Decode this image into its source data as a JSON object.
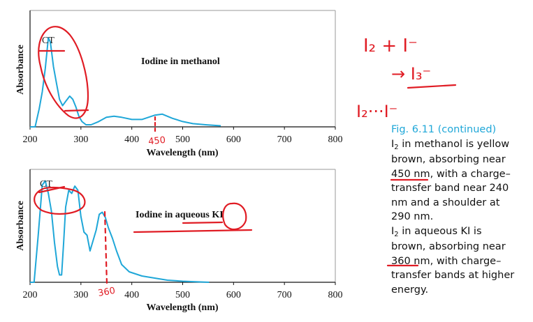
{
  "chart_data": [
    {
      "type": "line",
      "title": "Iodine in methanol",
      "annotation": "CT",
      "xlabel": "Wavelength (nm)",
      "ylabel": "Absorbance",
      "xlim": [
        200,
        800
      ],
      "ylim": [
        0,
        1
      ],
      "xticks": [
        "200",
        "300",
        "400",
        "500",
        "600",
        "700",
        "800"
      ],
      "line_color": "#1fa7d8",
      "series": [
        {
          "x": [
            200,
            210,
            218,
            224,
            230,
            236,
            240,
            246,
            252,
            258,
            264,
            270,
            278,
            284,
            290,
            296,
            302,
            310,
            320,
            335,
            350,
            365,
            380,
            400,
            420,
            445,
            460,
            480,
            500,
            520,
            545,
            575
          ],
          "y": [
            0.0,
            0.0,
            0.17,
            0.33,
            0.55,
            0.84,
            0.8,
            0.57,
            0.41,
            0.26,
            0.2,
            0.24,
            0.29,
            0.26,
            0.19,
            0.1,
            0.05,
            0.02,
            0.02,
            0.05,
            0.09,
            0.1,
            0.09,
            0.07,
            0.07,
            0.11,
            0.12,
            0.08,
            0.05,
            0.03,
            0.02,
            0.01
          ]
        }
      ]
    },
    {
      "type": "line",
      "title": "Iodine in aqueous KI",
      "annotation": "CT",
      "xlabel": "Wavelength (nm)",
      "ylabel": "Absorbance",
      "xlim": [
        200,
        800
      ],
      "ylim": [
        0,
        1
      ],
      "xticks": [
        "200",
        "300",
        "400",
        "500",
        "600",
        "700",
        "800"
      ],
      "line_color": "#1fa7d8",
      "series": [
        {
          "x": [
            200,
            208,
            216,
            224,
            230,
            236,
            242,
            248,
            254,
            258,
            262,
            266,
            270,
            276,
            282,
            288,
            294,
            300,
            306,
            312,
            318,
            324,
            330,
            336,
            342,
            348,
            354,
            362,
            370,
            380,
            395,
            420,
            445,
            470,
            500,
            525,
            552
          ],
          "y": [
            0.0,
            0.0,
            0.45,
            0.93,
            0.97,
            0.85,
            0.68,
            0.38,
            0.15,
            0.07,
            0.07,
            0.38,
            0.72,
            0.88,
            0.85,
            0.92,
            0.88,
            0.63,
            0.48,
            0.45,
            0.3,
            0.4,
            0.5,
            0.65,
            0.67,
            0.62,
            0.52,
            0.42,
            0.3,
            0.17,
            0.1,
            0.06,
            0.04,
            0.02,
            0.01,
            0.005,
            0.0
          ]
        }
      ]
    }
  ],
  "handwriting": {
    "top_eq": "I₂ + I⁻",
    "mid_eq": "→ I₃⁻",
    "bottom_eq": "I₂···I⁻",
    "mark_450": "450",
    "mark_360": "360"
  },
  "caption": {
    "fig_label": "Fig. 6.11 (continued)",
    "line1": "in methanol is yellow",
    "line2": "brown, absorbing near",
    "line3": "450 nm, with a charge–",
    "line4": "transfer band near 240",
    "line5": "nm and a shoulder at",
    "line6": "290 nm.",
    "line7": "in aqueous KI is",
    "line8": "brown, absorbing near",
    "line9": "360 nm, with charge–",
    "line10": "transfer bands at higher",
    "line11": "energy.",
    "iodine_symbol": "I",
    "iodine_sub": "2"
  },
  "colors": {
    "curve": "#1fa7d8",
    "ink": "#e01c24",
    "caption_title": "#1fa7d8"
  }
}
